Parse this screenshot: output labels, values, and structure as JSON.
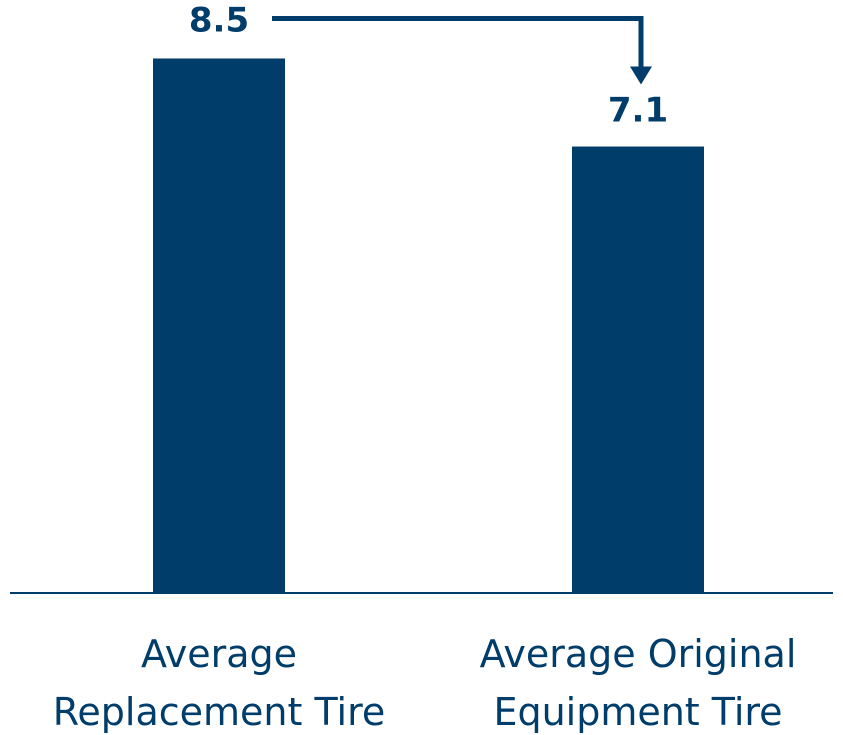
{
  "colors": {
    "bar": "#003d6b",
    "axis": "#003d6b",
    "category_text": "#003d6b",
    "value_text": "#003d6b",
    "background": "#ffffff"
  },
  "chart_data": {
    "type": "bar",
    "categories": [
      [
        "Average",
        "Replacement Tire"
      ],
      [
        "Average Original",
        "Equipment Tire"
      ]
    ],
    "values": [
      8.5,
      7.1
    ],
    "value_labels": [
      "8.5",
      "7.1"
    ],
    "title": "",
    "xlabel": "",
    "ylabel": "",
    "ylim": [
      0,
      9.43
    ],
    "grid": false,
    "legend": "none",
    "annotation": {
      "type": "arrow",
      "from": 0,
      "to": 1
    }
  }
}
